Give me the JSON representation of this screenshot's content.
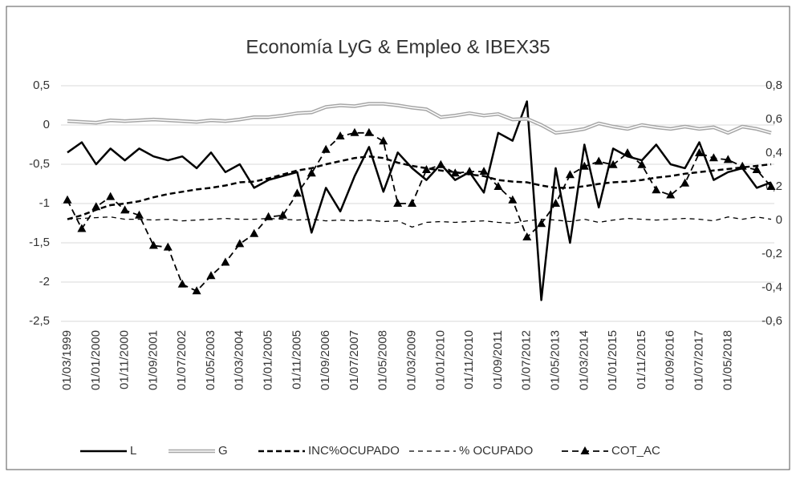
{
  "chart_data": {
    "type": "line",
    "title": "Economía LyG & Empleo & IBEX35",
    "categories": [
      "01/03/1999",
      null,
      "01/01/2000",
      null,
      "01/11/2000",
      null,
      "01/09/2001",
      null,
      "01/07/2002",
      null,
      "01/05/2003",
      null,
      "01/03/2004",
      null,
      "01/01/2005",
      null,
      "01/11/2005",
      null,
      "01/09/2006",
      null,
      "01/07/2007",
      null,
      "01/05/2008",
      null,
      "01/03/2009",
      null,
      "01/01/2010",
      null,
      "01/11/2010",
      null,
      "01/09/2011",
      null,
      "01/07/2012",
      null,
      "01/05/2013",
      null,
      "01/03/2014",
      null,
      "01/01/2015",
      null,
      "01/11/2015",
      null,
      "01/09/2016",
      null,
      "01/07/2017",
      null,
      "01/05/2018",
      null,
      null,
      null
    ],
    "ylim": [
      -2.5,
      0.5
    ],
    "yticks": [
      {
        "value": -2.5,
        "label": "-2,5"
      },
      -2,
      {
        "value": -1.5,
        "label": "-1,5"
      },
      -1,
      {
        "value": -0.5,
        "label": "-0,5"
      },
      0,
      {
        "value": 0.5,
        "label": "0,5"
      }
    ],
    "y2lim": [
      -0.6,
      0.8
    ],
    "y2ticks": [
      {
        "value": -0.6,
        "label": "-0,6"
      },
      {
        "value": -0.4,
        "label": "-0,4"
      },
      {
        "value": -0.2,
        "label": "-0,2"
      },
      0,
      {
        "value": 0.2,
        "label": "0,2"
      },
      {
        "value": 0.4,
        "label": "0,4"
      },
      {
        "value": 0.6,
        "label": "0,6"
      },
      {
        "value": 0.8,
        "label": "0,8"
      }
    ],
    "grid": true,
    "legend": "bottom",
    "series": [
      {
        "name": "L",
        "color": "#000000",
        "style": "solid",
        "values": [
          -0.35,
          -0.22,
          -0.5,
          -0.3,
          -0.45,
          -0.3,
          -0.4,
          -0.45,
          -0.4,
          -0.55,
          -0.35,
          -0.6,
          -0.5,
          -0.8,
          -0.7,
          -0.65,
          -0.6,
          -1.37,
          -0.8,
          -1.1,
          -0.65,
          -0.28,
          -0.85,
          -0.35,
          -0.55,
          -0.7,
          -0.5,
          -0.7,
          -0.6,
          -0.86,
          -0.1,
          -0.2,
          0.3,
          -2.23,
          -0.55,
          -1.5,
          -0.25,
          -1.05,
          -0.3,
          -0.4,
          -0.45,
          -0.25,
          -0.5,
          -0.55,
          -0.22,
          -0.7,
          -0.6,
          -0.55,
          -0.8,
          -0.73
        ]
      },
      {
        "name": "G",
        "color": "#a6a6a6",
        "style": "double",
        "values": [
          0.05,
          0.04,
          0.03,
          0.06,
          0.05,
          0.06,
          0.07,
          0.06,
          0.05,
          0.04,
          0.06,
          0.05,
          0.07,
          0.1,
          0.1,
          0.12,
          0.15,
          0.16,
          0.23,
          0.25,
          0.24,
          0.27,
          0.27,
          0.25,
          0.22,
          0.2,
          0.1,
          0.12,
          0.15,
          0.12,
          0.14,
          0.07,
          0.08,
          0.0,
          -0.1,
          -0.08,
          -0.05,
          0.02,
          -0.02,
          -0.05,
          0.0,
          -0.03,
          -0.05,
          -0.02,
          -0.05,
          -0.03,
          -0.1,
          -0.02,
          -0.05,
          -0.1
        ]
      },
      {
        "name": "INC%OCUPADO",
        "color": "#000000",
        "style": "dashed",
        "values": [
          -1.2,
          -1.15,
          -1.08,
          -1.02,
          -1.0,
          -0.97,
          -0.92,
          -0.88,
          -0.85,
          -0.82,
          -0.8,
          -0.77,
          -0.73,
          -0.72,
          -0.68,
          -0.63,
          -0.58,
          -0.55,
          -0.5,
          -0.46,
          -0.42,
          -0.4,
          -0.42,
          -0.48,
          -0.52,
          -0.55,
          -0.58,
          -0.6,
          -0.63,
          -0.65,
          -0.7,
          -0.72,
          -0.73,
          -0.77,
          -0.8,
          -0.8,
          -0.78,
          -0.75,
          -0.73,
          -0.72,
          -0.7,
          -0.67,
          -0.65,
          -0.62,
          -0.6,
          -0.58,
          -0.56,
          -0.54,
          -0.52,
          -0.5
        ]
      },
      {
        "name": "% OCUPADO",
        "color": "#000000",
        "style": "dashed-thin",
        "values": [
          -1.2,
          -1.19,
          -1.18,
          -1.17,
          -1.2,
          -1.2,
          -1.21,
          -1.2,
          -1.22,
          -1.21,
          -1.2,
          -1.19,
          -1.2,
          -1.2,
          -1.19,
          -1.2,
          -1.21,
          -1.2,
          -1.22,
          -1.21,
          -1.22,
          -1.21,
          -1.23,
          -1.22,
          -1.3,
          -1.24,
          -1.23,
          -1.24,
          -1.23,
          -1.22,
          -1.24,
          -1.25,
          -1.22,
          -1.2,
          -1.21,
          -1.23,
          -1.2,
          -1.24,
          -1.21,
          -1.19,
          -1.2,
          -1.21,
          -1.2,
          -1.19,
          -1.2,
          -1.22,
          -1.17,
          -1.2,
          -1.17,
          -1.2
        ]
      },
      {
        "name": "COT_AC",
        "color": "#000000",
        "style": "dashed-marker",
        "axis": "y2",
        "values": [
          0.12,
          -0.05,
          0.08,
          0.14,
          0.06,
          0.03,
          -0.15,
          -0.16,
          -0.38,
          -0.42,
          -0.33,
          -0.25,
          -0.14,
          -0.08,
          0.02,
          0.03,
          0.16,
          0.28,
          0.42,
          0.5,
          0.52,
          0.52,
          0.47,
          0.1,
          0.1,
          0.3,
          0.33,
          0.28,
          0.29,
          0.29,
          0.2,
          0.12,
          -0.1,
          -0.02,
          0.1,
          0.27,
          0.32,
          0.35,
          0.33,
          0.4,
          0.33,
          0.18,
          0.15,
          0.22,
          0.4,
          0.37,
          0.36,
          0.32,
          0.3,
          0.2
        ]
      }
    ]
  }
}
